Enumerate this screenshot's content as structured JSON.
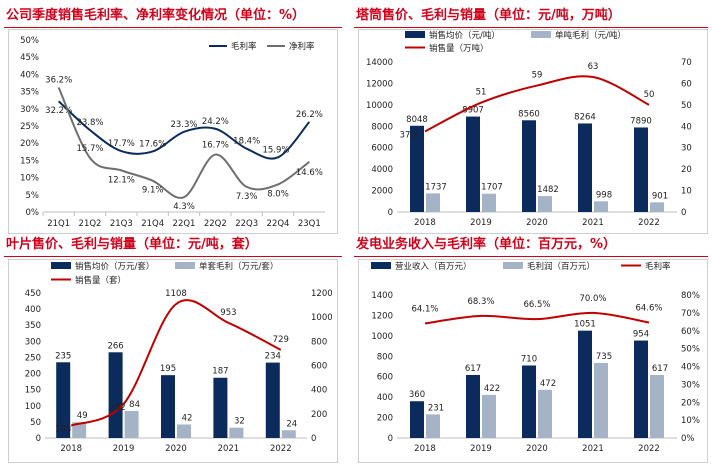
{
  "colors": {
    "title": "#d0021b",
    "navy": "#0b2b5c",
    "gray": "#a5b3c7",
    "red": "#c00000",
    "dark": "#595959"
  },
  "panels": {
    "p1": {
      "title": "公司季度销售毛利率、净利率变化情况（单位：%）"
    },
    "p2": {
      "title": "塔筒售价、毛利与销量（单位：元/吨，万吨）"
    },
    "p3": {
      "title": "叶片售价、毛利与销量（单位：元/吨，套）"
    },
    "p4": {
      "title": "发电业务收入与毛利率（单位：百万元，%）"
    }
  },
  "chart_data": [
    {
      "id": "p1",
      "type": "line",
      "categories": [
        "21Q1",
        "21Q2",
        "21Q3",
        "21Q4",
        "22Q1",
        "22Q2",
        "22Q3",
        "22Q4",
        "23Q1"
      ],
      "series": [
        {
          "name": "毛利率",
          "values": [
            32.2,
            23.8,
            17.7,
            17.6,
            23.3,
            24.2,
            18.4,
            15.9,
            26.2
          ],
          "labels": [
            "32.2%",
            "23.8%",
            "17.7%",
            "17.6%",
            "23.3%",
            "24.2%",
            "18.4%",
            "15.9%",
            "26.2%"
          ]
        },
        {
          "name": "净利率",
          "values": [
            36.2,
            15.7,
            12.1,
            9.1,
            4.3,
            16.7,
            7.3,
            8.0,
            14.6
          ],
          "labels": [
            "36.2%",
            "15.7%",
            "12.1%",
            "9.1%",
            "4.3%",
            "16.7%",
            "7.3%",
            "8.0%",
            "14.6%"
          ]
        }
      ],
      "y_ticks": [
        "0%",
        "5%",
        "10%",
        "15%",
        "20%",
        "25%",
        "30%",
        "35%",
        "40%",
        "45%",
        "50%"
      ],
      "ylim": [
        0,
        50
      ],
      "legend_position": "top-right"
    },
    {
      "id": "p2",
      "type": "bar",
      "categories": [
        "2018",
        "2019",
        "2020",
        "2021",
        "2022"
      ],
      "series": [
        {
          "name": "销售均价（元/吨）",
          "values": [
            8048,
            8907,
            8560,
            8264,
            7890
          ],
          "labels": [
            "8048",
            "8907",
            "8560",
            "8264",
            "7890"
          ]
        },
        {
          "name": "单吨毛利（元/吨）",
          "values": [
            1737,
            1707,
            1482,
            998,
            901
          ],
          "labels": [
            "1737",
            "1707",
            "1482",
            "998",
            "901"
          ]
        },
        {
          "name": "销售量（万吨）",
          "values": [
            37.6,
            51,
            59,
            63,
            50
          ],
          "labels": [
            "37.6",
            "51",
            "59",
            "63",
            "50"
          ]
        }
      ],
      "y_ticks": [
        "0",
        "2000",
        "4000",
        "6000",
        "8000",
        "10000",
        "12000",
        "14000"
      ],
      "y2_ticks": [
        "0",
        "10",
        "20",
        "30",
        "40",
        "50",
        "60",
        "70"
      ],
      "ylim": [
        0,
        14000
      ],
      "y2lim": [
        0,
        70
      ],
      "legend_position": "top"
    },
    {
      "id": "p3",
      "type": "bar",
      "categories": [
        "2018",
        "2019",
        "2020",
        "2021",
        "2022"
      ],
      "series": [
        {
          "name": "销售均价（万元/套）",
          "values": [
            235,
            266,
            195,
            187,
            234
          ],
          "labels": [
            "235",
            "266",
            "195",
            "187",
            "234"
          ]
        },
        {
          "name": "单套毛利（万元/套）",
          "values": [
            49,
            84,
            42,
            32,
            24
          ],
          "labels": [
            "49",
            "84",
            "42",
            "32",
            "24"
          ]
        },
        {
          "name": "销售量（套）",
          "values": [
            103,
            282,
            1108,
            953,
            729
          ],
          "labels": [
            "103",
            "282",
            "1108",
            "953",
            "729"
          ]
        }
      ],
      "y_ticks": [
        "0",
        "50",
        "100",
        "150",
        "200",
        "250",
        "300",
        "350",
        "400",
        "450"
      ],
      "y2_ticks": [
        "0",
        "200",
        "400",
        "600",
        "800",
        "1000",
        "1200"
      ],
      "ylim": [
        0,
        450
      ],
      "y2lim": [
        0,
        1200
      ],
      "legend_position": "top"
    },
    {
      "id": "p4",
      "type": "bar",
      "categories": [
        "2018",
        "2019",
        "2020",
        "2021",
        "2022"
      ],
      "series": [
        {
          "name": "营业收入（百万元）",
          "values": [
            360,
            617,
            710,
            1051,
            954
          ],
          "labels": [
            "360",
            "617",
            "710",
            "1051",
            "954"
          ]
        },
        {
          "name": "毛利润（百万元）",
          "values": [
            231,
            422,
            472,
            735,
            617
          ],
          "labels": [
            "231",
            "422",
            "472",
            "735",
            "617"
          ]
        },
        {
          "name": "毛利率",
          "values": [
            64.1,
            68.3,
            66.5,
            70.0,
            64.6
          ],
          "labels": [
            "64.1%",
            "68.3%",
            "66.5%",
            "70.0%",
            "64.6%"
          ]
        }
      ],
      "y_ticks": [
        "0",
        "200",
        "400",
        "600",
        "800",
        "1000",
        "1200",
        "1400"
      ],
      "y2_ticks": [
        "0%",
        "10%",
        "20%",
        "30%",
        "40%",
        "50%",
        "60%",
        "70%",
        "80%"
      ],
      "ylim": [
        0,
        1400
      ],
      "y2lim": [
        0,
        80
      ],
      "legend_position": "top"
    }
  ]
}
